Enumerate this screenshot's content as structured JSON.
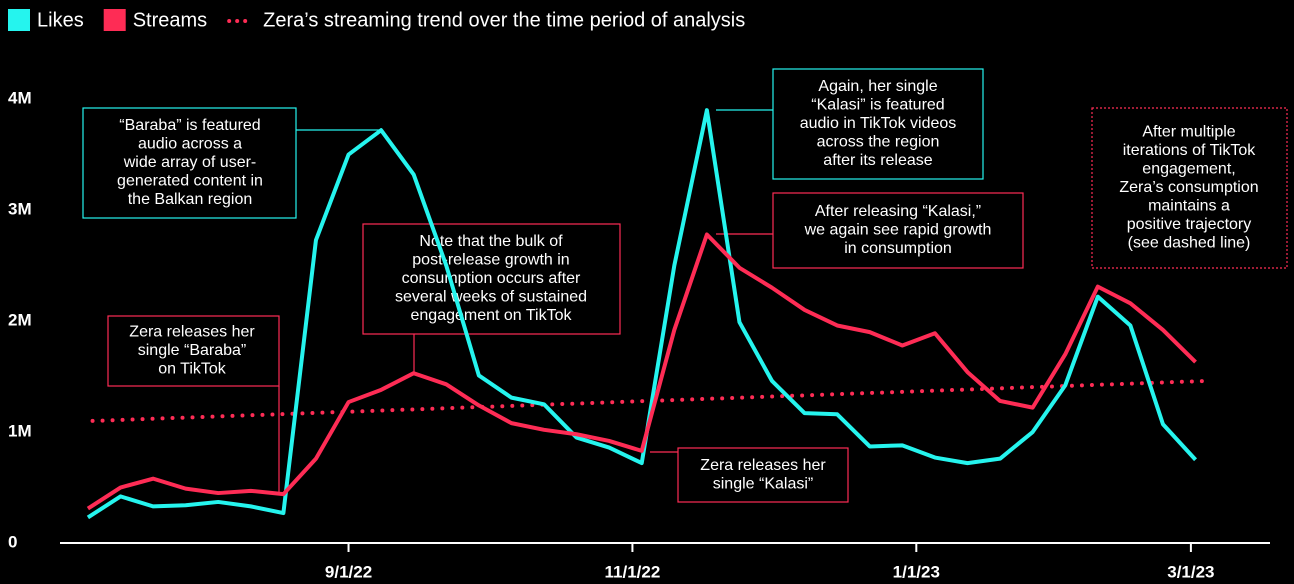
{
  "chart_data": {
    "type": "line",
    "x": [
      "2022-07-07",
      "2022-07-14",
      "2022-07-21",
      "2022-07-28",
      "2022-08-04",
      "2022-08-11",
      "2022-08-18",
      "2022-08-25",
      "2022-09-01",
      "2022-09-08",
      "2022-09-15",
      "2022-09-22",
      "2022-09-29",
      "2022-10-06",
      "2022-10-13",
      "2022-10-20",
      "2022-10-27",
      "2022-11-03",
      "2022-11-10",
      "2022-11-17",
      "2022-11-24",
      "2022-12-01",
      "2022-12-08",
      "2022-12-15",
      "2022-12-22",
      "2022-12-29",
      "2023-01-05",
      "2023-01-12",
      "2023-01-19",
      "2023-01-26",
      "2023-02-02",
      "2023-02-09",
      "2023-02-16",
      "2023-02-23",
      "2023-03-02"
    ],
    "series": [
      {
        "name": "Likes",
        "color": "#25f4ee",
        "values": [
          230000,
          420000,
          330000,
          340000,
          370000,
          330000,
          270000,
          2730000,
          3500000,
          3720000,
          3320000,
          2500000,
          1510000,
          1310000,
          1250000,
          950000,
          860000,
          720000,
          2500000,
          3900000,
          1990000,
          1460000,
          1170000,
          1160000,
          870000,
          880000,
          770000,
          720000,
          760000,
          1000000,
          1420000,
          2220000,
          1960000,
          1070000,
          750000
        ]
      },
      {
        "name": "Streams",
        "color": "#fe2c55",
        "values": [
          310000,
          500000,
          580000,
          490000,
          450000,
          470000,
          440000,
          760000,
          1270000,
          1380000,
          1530000,
          1430000,
          1240000,
          1080000,
          1020000,
          980000,
          920000,
          830000,
          1920000,
          2780000,
          2480000,
          2300000,
          2100000,
          1960000,
          1900000,
          1780000,
          1890000,
          1540000,
          1280000,
          1220000,
          1700000,
          2310000,
          2160000,
          1920000,
          1630000
        ]
      }
    ],
    "trend": {
      "name": "Zera’s streaming trend over the time period of analysis",
      "color": "#fe2c55",
      "style": "dotted",
      "x": [
        "2022-07-08",
        "2023-03-04"
      ],
      "values": [
        1100000,
        1460000
      ]
    },
    "xlim": [
      "2022-07-01",
      "2023-03-18"
    ],
    "xticks": [
      {
        "value": "2022-09-01",
        "label": "9/1/22"
      },
      {
        "value": "2022-11-01",
        "label": "11/1/22"
      },
      {
        "value": "2023-01-01",
        "label": "1/1/23"
      },
      {
        "value": "2023-03-01",
        "label": "3/1/23"
      }
    ],
    "ylim": [
      0,
      4100000
    ],
    "yticks": [
      0,
      {
        "value": 1000000,
        "label": "1M"
      },
      {
        "value": 2000000,
        "label": "2M"
      },
      {
        "value": 3000000,
        "label": "3M"
      },
      {
        "value": 4000000,
        "label": "4M"
      }
    ],
    "annotations": [
      {
        "color": "#25f4ee",
        "border": "solid",
        "lines": [
          "“Baraba” is featured",
          "audio across a",
          "wide array of user-",
          "generated content in",
          "the Balkan region"
        ]
      },
      {
        "color": "#fe2c55",
        "border": "solid",
        "lines": [
          "Zera releases her",
          "single “Baraba”",
          "on TikTok"
        ]
      },
      {
        "color": "#fe2c55",
        "border": "solid",
        "lines": [
          "Note that the bulk of",
          "post-release growth in",
          "consumption occurs after",
          "several weeks of sustained",
          "engagement on TikTok"
        ]
      },
      {
        "color": "#25f4ee",
        "border": "solid",
        "lines": [
          "Again, her single",
          "“Kalasi” is featured",
          "audio in TikTok videos",
          "across the region",
          "after its release"
        ]
      },
      {
        "color": "#fe2c55",
        "border": "solid",
        "lines": [
          "After releasing “Kalasi,”",
          "we again see rapid growth",
          "in consumption"
        ]
      },
      {
        "color": "#fe2c55",
        "border": "solid",
        "lines": [
          "Zera releases her",
          "single “Kalasi”"
        ]
      },
      {
        "color": "#fe2c55",
        "border": "dotted",
        "lines": [
          "After multiple",
          "iterations of TikTok",
          "engagement,",
          "Zera’s consumption",
          "maintains a",
          "positive trajectory",
          "(see dashed line)"
        ]
      }
    ]
  }
}
